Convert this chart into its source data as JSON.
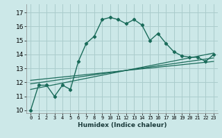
{
  "xlabel": "Humidex (Indice chaleur)",
  "ylabel": "",
  "bg_color": "#cce8e8",
  "grid_color": "#aacccc",
  "line_color": "#1a6b5a",
  "xlim": [
    -0.5,
    23.5
  ],
  "ylim": [
    9.8,
    17.6
  ],
  "xticks": [
    0,
    1,
    2,
    3,
    4,
    5,
    6,
    7,
    8,
    9,
    10,
    11,
    12,
    13,
    14,
    15,
    16,
    17,
    18,
    19,
    20,
    21,
    22,
    23
  ],
  "yticks": [
    10,
    11,
    12,
    13,
    14,
    15,
    16,
    17
  ],
  "curve1_x": [
    0,
    1,
    2,
    3,
    4,
    5,
    6,
    7,
    8,
    9,
    10,
    11,
    12,
    13,
    14,
    15,
    16,
    17,
    18,
    19,
    20,
    21,
    22,
    23
  ],
  "curve1_y": [
    10.0,
    11.8,
    11.8,
    11.0,
    11.8,
    11.5,
    13.5,
    14.8,
    15.3,
    16.5,
    16.65,
    16.5,
    16.2,
    16.5,
    16.1,
    15.0,
    15.5,
    14.8,
    14.2,
    13.9,
    13.8,
    13.8,
    13.5,
    14.0
  ],
  "line1_x": [
    0,
    23
  ],
  "line1_y": [
    11.5,
    14.1
  ],
  "line2_x": [
    0,
    23
  ],
  "line2_y": [
    11.9,
    13.75
  ],
  "line3_x": [
    0,
    23
  ],
  "line3_y": [
    12.15,
    13.5
  ]
}
